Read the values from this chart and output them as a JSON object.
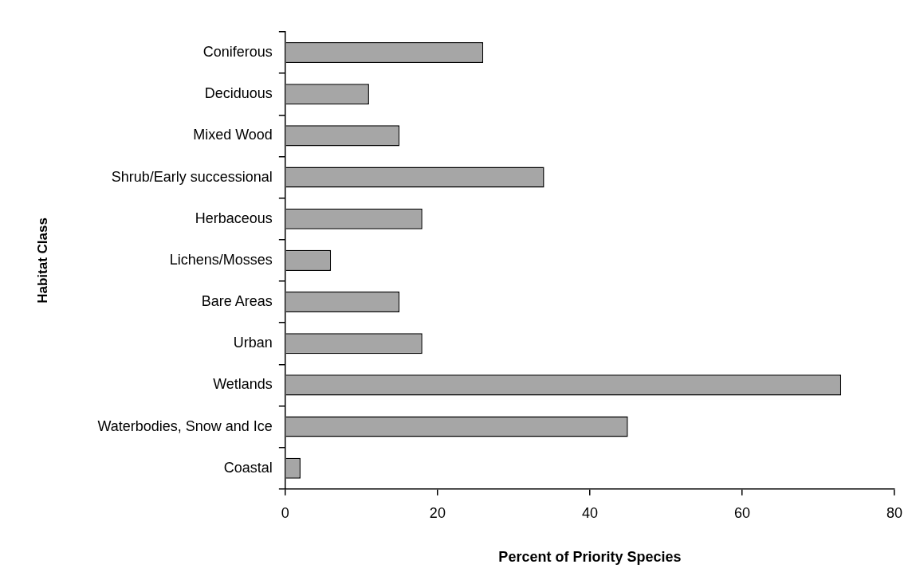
{
  "chart_data": {
    "type": "bar",
    "orientation": "horizontal",
    "xlabel": "Percent of Priority Species",
    "ylabel": "Habitat Class",
    "categories": [
      "Coniferous",
      "Deciduous",
      "Mixed Wood",
      "Shrub/Early successional",
      "Herbaceous",
      "Lichens/Mosses",
      "Bare Areas",
      "Urban",
      "Wetlands",
      "Waterbodies, Snow and Ice",
      "Coastal"
    ],
    "values": [
      26,
      11,
      15,
      34,
      18,
      6,
      15,
      18,
      73,
      45,
      2
    ],
    "color": "#a6a6a6",
    "xlim": [
      0,
      80
    ],
    "xticks": [
      0,
      20,
      40,
      60,
      80
    ],
    "grid": false,
    "legend": false
  }
}
